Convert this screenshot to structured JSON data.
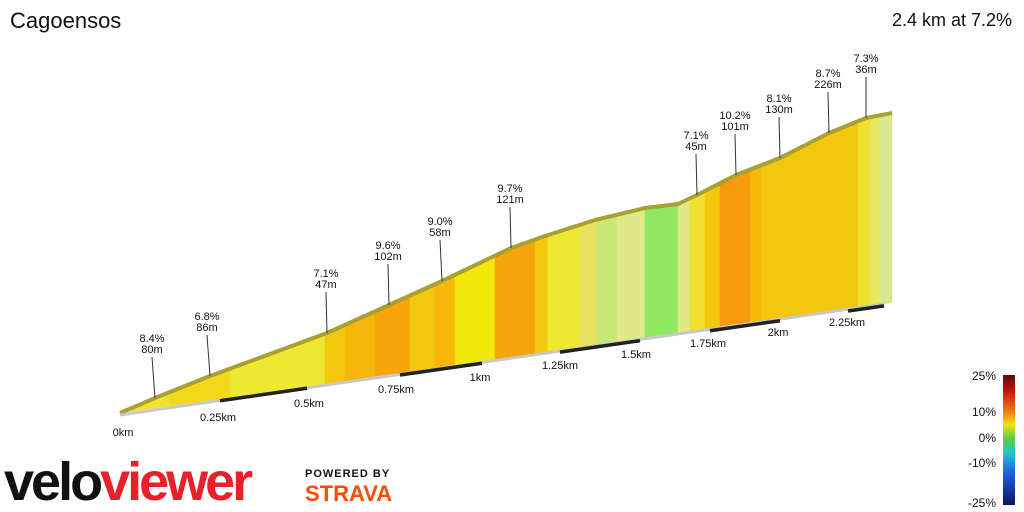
{
  "header": {
    "title": "Cagoensos",
    "summary": "2.4 km at 7.2%"
  },
  "annotations": [
    {
      "gradient": "8.4%",
      "length": "80m"
    },
    {
      "gradient": "6.8%",
      "length": "86m"
    },
    {
      "gradient": "7.1%",
      "length": "47m"
    },
    {
      "gradient": "9.6%",
      "length": "102m"
    },
    {
      "gradient": "9.0%",
      "length": "58m"
    },
    {
      "gradient": "9.7%",
      "length": "121m"
    },
    {
      "gradient": "7.1%",
      "length": "45m"
    },
    {
      "gradient": "10.2%",
      "length": "101m"
    },
    {
      "gradient": "8.1%",
      "length": "130m"
    },
    {
      "gradient": "8.7%",
      "length": "226m"
    },
    {
      "gradient": "7.3%",
      "length": "36m"
    }
  ],
  "distance_labels": [
    "0km",
    "0.25km",
    "0.5km",
    "0.75km",
    "1km",
    "1.25km",
    "1.5km",
    "1.75km",
    "2km",
    "2.25km"
  ],
  "legend": {
    "labels": [
      "25%",
      "10%",
      "0%",
      "-10%",
      "-25%"
    ]
  },
  "logos": {
    "brand_left": "velo",
    "brand_right": "viewer",
    "powered_by": "POWERED BY",
    "partner": "STRAVA"
  }
}
